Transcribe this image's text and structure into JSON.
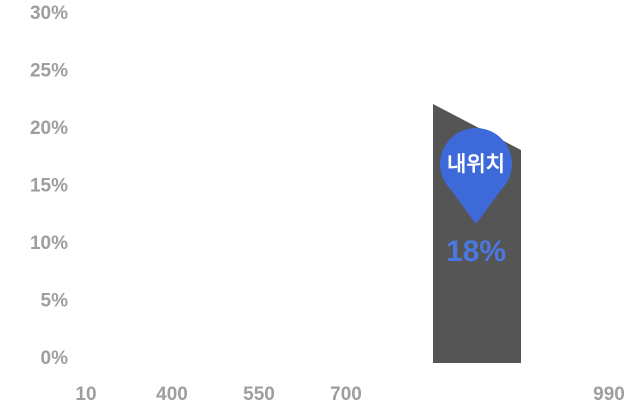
{
  "chart_data": {
    "type": "area",
    "y_ticks": [
      "30%",
      "25%",
      "20%",
      "15%",
      "10%",
      "5%",
      "0%"
    ],
    "x_ticks": [
      "10",
      "400",
      "550",
      "700",
      "990"
    ],
    "ylim": [
      0,
      30
    ],
    "highlight_segment": {
      "start_value": 22,
      "end_value": 18
    },
    "marker": {
      "label": "내위치",
      "value_label": "18%"
    },
    "grid": false,
    "legend": "none"
  },
  "colors": {
    "tick_text": "#9e9e9e",
    "area_fill": "#555555",
    "marker_fill": "#3d6ad8",
    "value_text": "#4a78e0"
  },
  "icons": {
    "marker": "map-pin-icon"
  }
}
